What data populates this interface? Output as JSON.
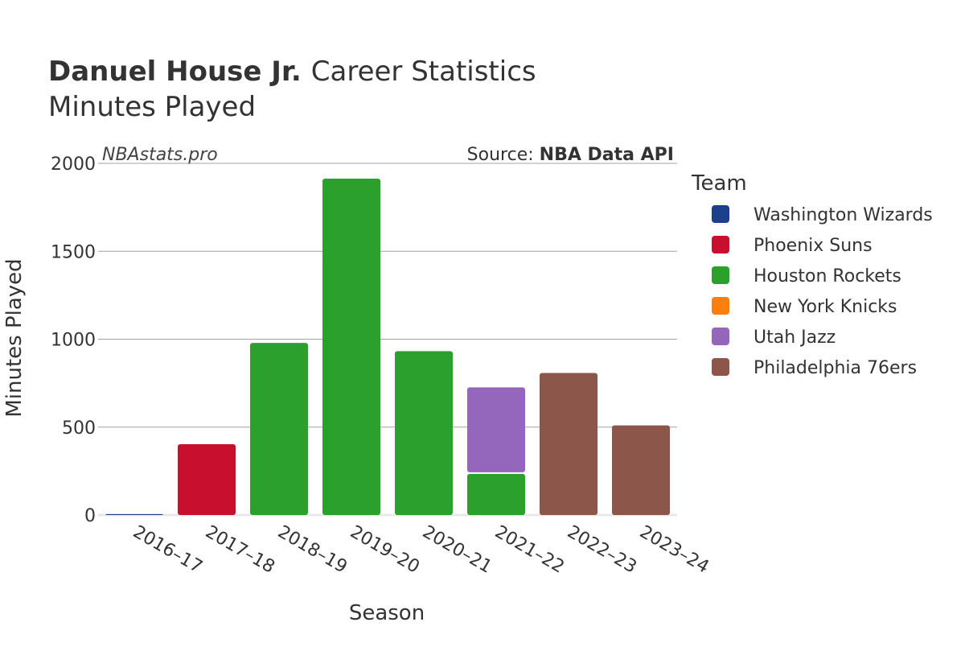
{
  "header": {
    "player_name": "Danuel House Jr.",
    "title_suffix": "Career Statistics",
    "subtitle": "Minutes Played"
  },
  "watermark": "NBAstats.pro",
  "source": {
    "prefix": "Source:",
    "name": "NBA Data API"
  },
  "legend": {
    "title": "Team",
    "placement": "right",
    "items": [
      {
        "label": "Washington Wizards",
        "color": "#1b3f8b"
      },
      {
        "label": "Phoenix Suns",
        "color": "#c8102e"
      },
      {
        "label": "Houston Rockets",
        "color": "#2ca02c"
      },
      {
        "label": "New York Knicks",
        "color": "#ff7f0e"
      },
      {
        "label": "Utah Jazz",
        "color": "#9467bd"
      },
      {
        "label": "Philadelphia 76ers",
        "color": "#8c564b"
      }
    ]
  },
  "chart_data": {
    "type": "bar",
    "stacked": true,
    "title": "Danuel House Jr. Career Statistics",
    "subtitle": "Minutes Played",
    "xlabel": "Season",
    "ylabel": "Minutes Played",
    "ylim": [
      0,
      2000
    ],
    "yticks": [
      0,
      500,
      1000,
      1500,
      2000
    ],
    "grid": true,
    "categories": [
      "2016–17",
      "2017–18",
      "2018–19",
      "2019–20",
      "2020–21",
      "2021–22",
      "2022–23",
      "2023–24"
    ],
    "series": [
      {
        "name": "Washington Wizards",
        "color": "#1b3f8b",
        "values": [
          5,
          0,
          0,
          0,
          0,
          0,
          0,
          0
        ]
      },
      {
        "name": "Phoenix Suns",
        "color": "#c8102e",
        "values": [
          0,
          403,
          0,
          0,
          0,
          0,
          0,
          0
        ]
      },
      {
        "name": "Houston Rockets",
        "color": "#2ca02c",
        "values": [
          0,
          0,
          979,
          1913,
          932,
          234,
          0,
          0
        ]
      },
      {
        "name": "New York Knicks",
        "color": "#ff7f0e",
        "values": [
          0,
          0,
          0,
          0,
          0,
          0,
          0,
          0
        ]
      },
      {
        "name": "Utah Jazz",
        "color": "#9467bd",
        "values": [
          0,
          0,
          0,
          0,
          0,
          492,
          0,
          0
        ]
      },
      {
        "name": "Philadelphia 76ers",
        "color": "#8c564b",
        "values": [
          0,
          0,
          0,
          0,
          0,
          0,
          808,
          510
        ]
      }
    ]
  }
}
